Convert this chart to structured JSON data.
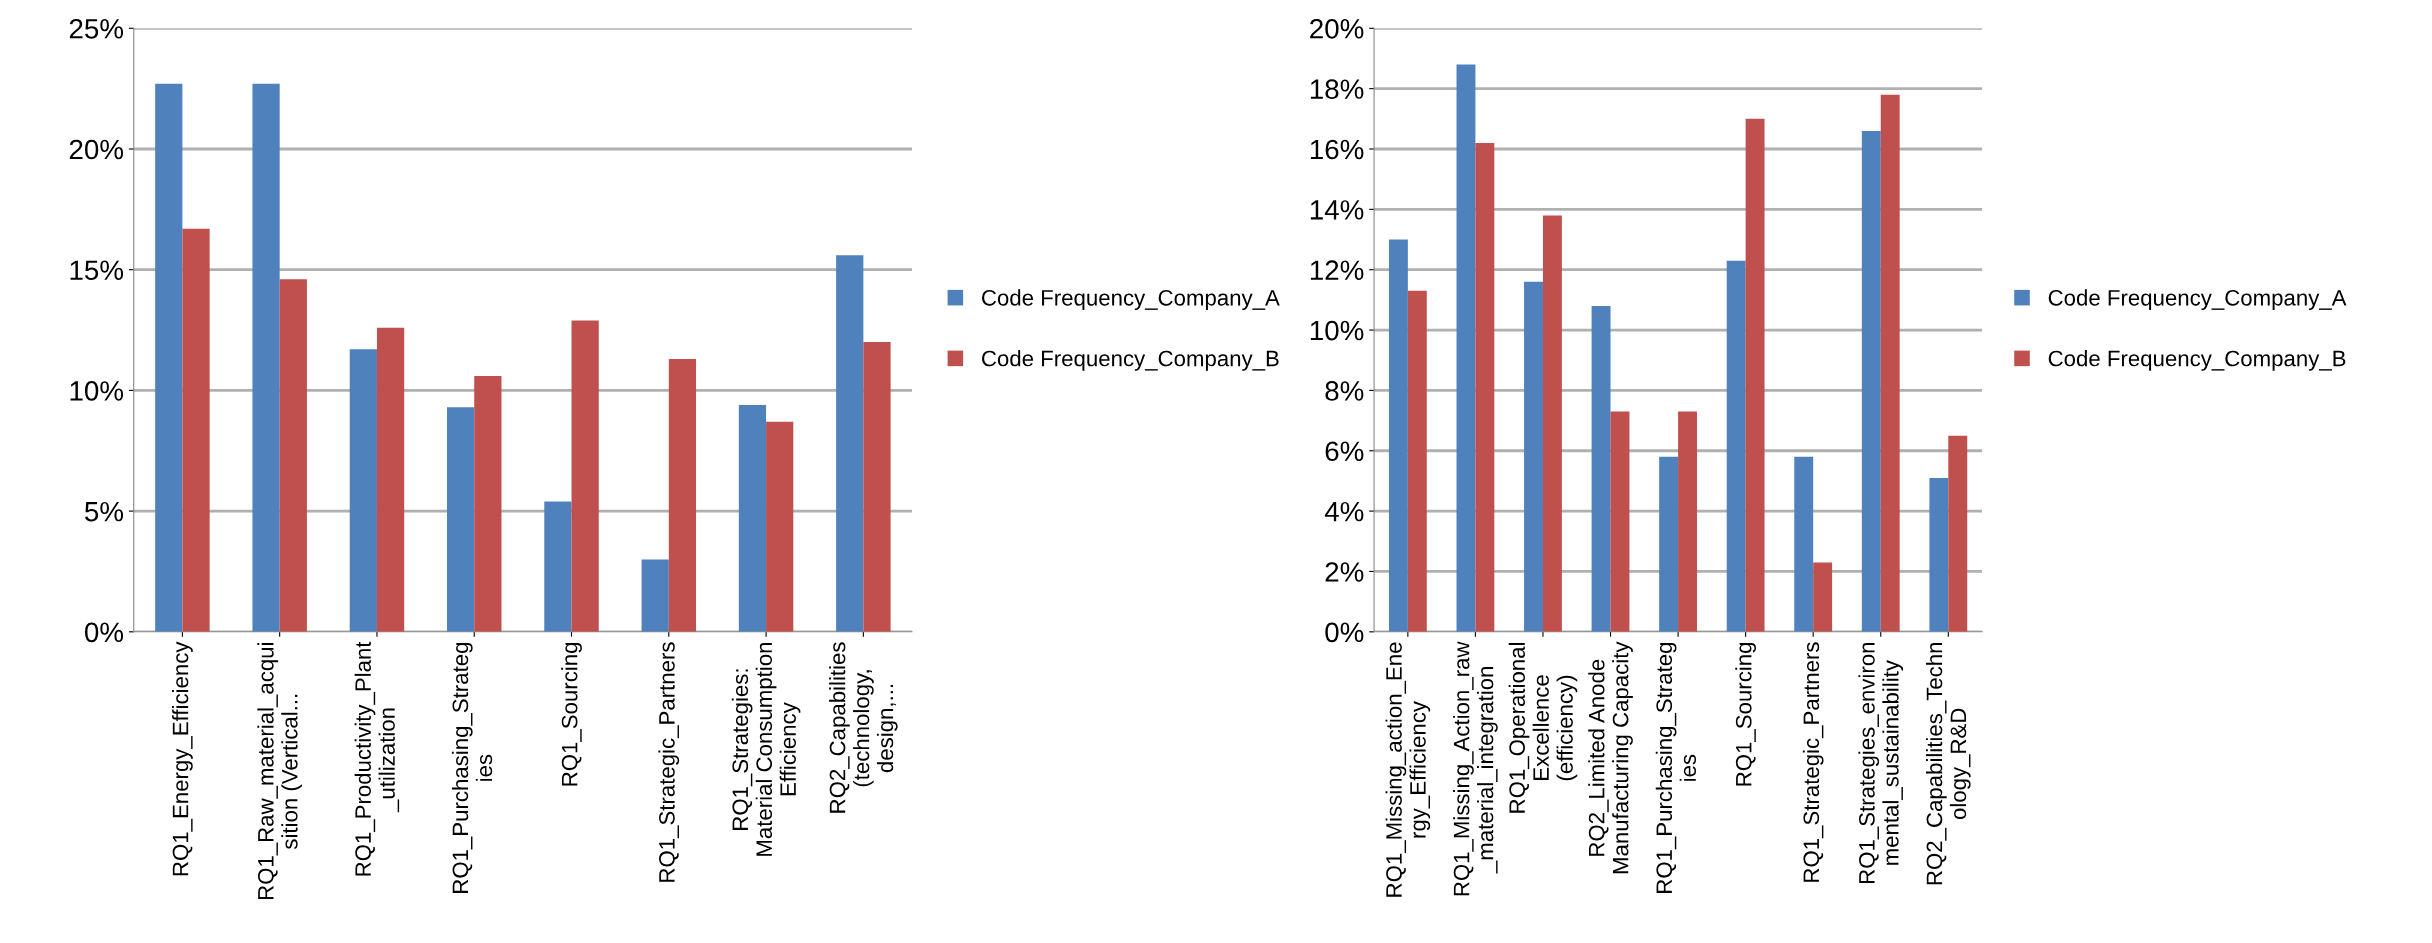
{
  "chart_data": [
    {
      "type": "bar",
      "categories": [
        "RQ1_Energy_Efficiency",
        "RQ1_Raw_material_acquisition (Vertical...",
        "RQ1_Productivity_Plant_utilization",
        "RQ1_Purchasing_Strategies",
        "RQ1_Sourcing",
        "RQ1_Strategic_Partners",
        "RQ1_Strategies: Material Consumption Efficiency",
        "RQ2_Capabilities (technology, design,..."
      ],
      "series": [
        {
          "name": "Code Frequency_Company_A",
          "color": "#4f81bd",
          "values": [
            22.7,
            22.7,
            11.7,
            9.3,
            5.4,
            3.0,
            9.4,
            15.6
          ]
        },
        {
          "name": "Code Frequency_Company_B",
          "color": "#c0504d",
          "values": [
            16.7,
            14.6,
            12.6,
            10.6,
            12.9,
            11.3,
            8.7,
            12.0
          ]
        }
      ],
      "ylim": [
        0,
        25
      ],
      "yticks": [
        {
          "value": 0,
          "label": "0%"
        },
        {
          "value": 5,
          "label": "5%"
        },
        {
          "value": 10,
          "label": "10%"
        },
        {
          "value": 15,
          "label": "15%"
        },
        {
          "value": 20,
          "label": "20%"
        },
        {
          "value": 25,
          "label": "25%"
        }
      ],
      "grid": "y",
      "legend": "right"
    },
    {
      "type": "bar",
      "categories": [
        "RQ1_Missing_action_Energy_Efficiency",
        "RQ1_Missing_Action_raw_material_integration",
        "RQ1_Operational Excellence (efficiency)",
        "RQ2_Limited Anode Manufacturing Capacity",
        "RQ1_Purchasing_Strategies",
        "RQ1_Sourcing",
        "RQ1_Strategic_Partners",
        "RQ1_Strategies_environmental_sustainability",
        "RQ2_Capabilities_Technology_R&D"
      ],
      "series": [
        {
          "name": "Code Frequency_Company_A",
          "color": "#4f81bd",
          "values": [
            13.0,
            18.8,
            11.6,
            10.8,
            5.8,
            12.3,
            5.8,
            16.6,
            5.1
          ]
        },
        {
          "name": "Code Frequency_Company_B",
          "color": "#c0504d",
          "values": [
            11.3,
            16.2,
            13.8,
            7.3,
            7.3,
            17.0,
            2.3,
            17.8,
            6.5
          ]
        }
      ],
      "ylim": [
        0,
        20
      ],
      "yticks": [
        {
          "value": 0,
          "label": "0%"
        },
        {
          "value": 2,
          "label": "2%"
        },
        {
          "value": 4,
          "label": "4%"
        },
        {
          "value": 6,
          "label": "6%"
        },
        {
          "value": 8,
          "label": "8%"
        },
        {
          "value": 10,
          "label": "10%"
        },
        {
          "value": 12,
          "label": "12%"
        },
        {
          "value": 14,
          "label": "14%"
        },
        {
          "value": 16,
          "label": "16%"
        },
        {
          "value": 18,
          "label": "18%"
        },
        {
          "value": 20,
          "label": "20%"
        }
      ],
      "grid": "y",
      "legend": "right"
    }
  ]
}
